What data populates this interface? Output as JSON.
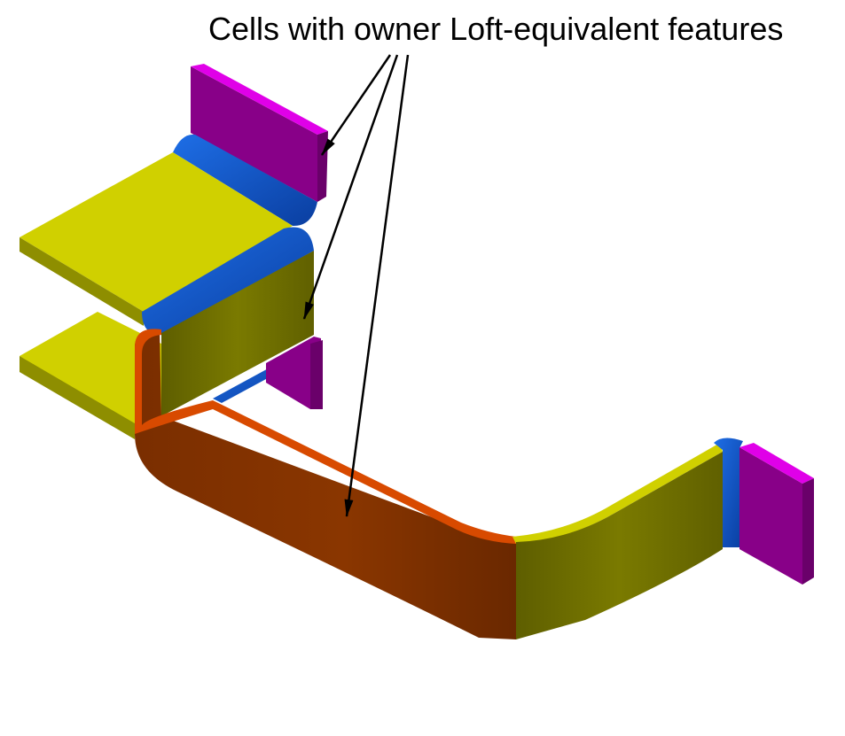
{
  "annotation": {
    "label": "Cells with owner Loft-equivalent features"
  },
  "colors": {
    "yellow_face": "#D0D000",
    "olive_face": "#707000",
    "blue_fillet": "#0A50C8",
    "magenta_top": "#E000E8",
    "purple_face": "#880088",
    "orange_edge": "#D84A00",
    "brown_face": "#7A2E00",
    "arrow": "#000000"
  }
}
